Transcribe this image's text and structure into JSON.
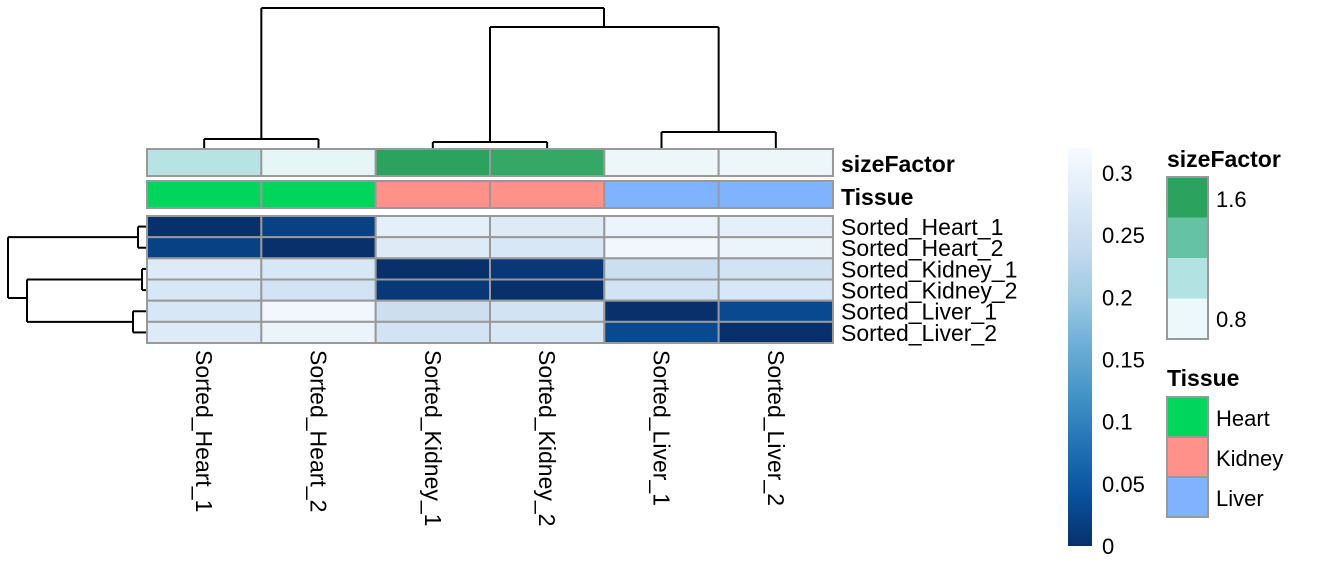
{
  "chart_data": {
    "type": "heatmap",
    "title": "",
    "rows": [
      "Sorted_Heart_1",
      "Sorted_Heart_2",
      "Sorted_Kidney_1",
      "Sorted_Kidney_2",
      "Sorted_Liver_1",
      "Sorted_Liver_2"
    ],
    "columns": [
      "Sorted_Heart_1",
      "Sorted_Heart_2",
      "Sorted_Kidney_1",
      "Sorted_Kidney_2",
      "Sorted_Liver_1",
      "Sorted_Liver_2"
    ],
    "values": [
      [
        0.0,
        0.02,
        0.29,
        0.28,
        0.3,
        0.29
      ],
      [
        0.02,
        0.0,
        0.28,
        0.27,
        0.31,
        0.3
      ],
      [
        0.28,
        0.27,
        0.0,
        0.01,
        0.25,
        0.26
      ],
      [
        0.27,
        0.26,
        0.01,
        0.0,
        0.26,
        0.27
      ],
      [
        0.27,
        0.31,
        0.25,
        0.26,
        0.0,
        0.03
      ],
      [
        0.28,
        0.3,
        0.26,
        0.27,
        0.03,
        0.0
      ]
    ],
    "color_scale": {
      "range": [
        0,
        0.32
      ],
      "ticks": [
        "0",
        "0.05",
        "0.1",
        "0.15",
        "0.2",
        "0.25",
        "0.3"
      ],
      "tick_values": [
        0,
        0.05,
        0.1,
        0.15,
        0.2,
        0.25,
        0.3
      ],
      "colors": [
        "#08306b",
        "#08519c",
        "#2171b5",
        "#4292c6",
        "#6baed6",
        "#9ecae1",
        "#c6dbef",
        "#deebf7",
        "#f7fbff"
      ]
    },
    "annotations": {
      "sizeFactor": {
        "label": "sizeFactor",
        "values": [
          1.0,
          0.8,
          1.6,
          1.55,
          0.7,
          0.7
        ],
        "legend_ticks": [
          "1.6",
          "0.8"
        ],
        "legend_colors": [
          "#2ca25f",
          "#66c2a4",
          "#b2e2e2",
          "#edf8fb"
        ],
        "cell_colors": [
          "#b8e3e3",
          "#e6f5f6",
          "#2ca25f",
          "#35a866",
          "#edf7fa",
          "#edf7fa"
        ]
      },
      "Tissue": {
        "label": "Tissue",
        "values": [
          "Heart",
          "Heart",
          "Kidney",
          "Kidney",
          "Liver",
          "Liver"
        ],
        "levels": [
          "Heart",
          "Kidney",
          "Liver"
        ],
        "level_colors": {
          "Heart": "#00d65c",
          "Kidney": "#ff918a",
          "Liver": "#80b3ff"
        }
      }
    },
    "legend_titles": {
      "sizeFactor": "sizeFactor",
      "Tissue": "Tissue"
    },
    "row_dendrogram": "((Sorted_Heart_1,Sorted_Heart_2),((Sorted_Kidney_1,Sorted_Kidney_2),(Sorted_Liver_1,Sorted_Liver_2)))",
    "col_dendrogram": "((Sorted_Heart_1,Sorted_Heart_2),((Sorted_Kidney_1,Sorted_Kidney_2),(Sorted_Liver_1,Sorted_Liver_2)))"
  }
}
